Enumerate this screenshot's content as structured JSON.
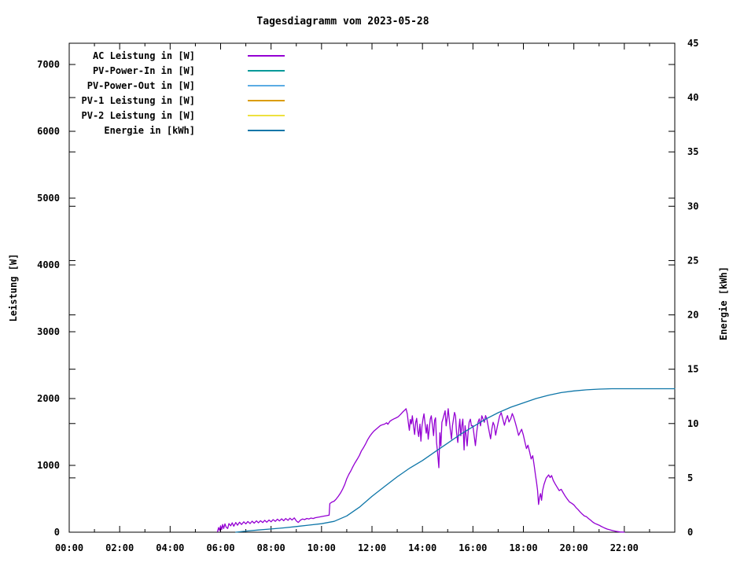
{
  "page": {
    "background": "#ffffff"
  },
  "chart_data": {
    "type": "line",
    "title": "Tagesdiagramm vom 2023-05-28",
    "grid": false,
    "legend_position": "top-left-inside",
    "axes": {
      "x": {
        "unit": "time",
        "range_hours": [
          0,
          24
        ],
        "major_step_hours": 2,
        "minor_step_hours": 1,
        "tick_labels": [
          "00:00",
          "02:00",
          "04:00",
          "06:00",
          "08:00",
          "10:00",
          "12:00",
          "14:00",
          "16:00",
          "18:00",
          "20:00",
          "22:00"
        ]
      },
      "y_left": {
        "label": "Leistung [W]",
        "range": [
          0,
          7318
        ],
        "tick_step": 1000,
        "tick_values": [
          0,
          1000,
          2000,
          3000,
          4000,
          5000,
          6000,
          7000
        ],
        "tick_labels": [
          "0",
          "1000",
          "2000",
          "3000",
          "4000",
          "5000",
          "6000",
          "7000"
        ]
      },
      "y_right": {
        "label": "Energie [kWh]",
        "range": [
          0,
          45
        ],
        "tick_step": 5,
        "tick_values": [
          0,
          5,
          10,
          15,
          20,
          25,
          30,
          35,
          40,
          45
        ],
        "tick_labels": [
          "0",
          "5",
          "10",
          "15",
          "20",
          "25",
          "30",
          "35",
          "40",
          "45"
        ]
      }
    },
    "series": [
      {
        "name": "AC Leistung in [W]",
        "color": "#9400D3",
        "axis": "left",
        "points": [
          [
            5.88,
            10
          ],
          [
            5.92,
            70
          ],
          [
            5.96,
            25
          ],
          [
            6.0,
            95
          ],
          [
            6.04,
            40
          ],
          [
            6.08,
            115
          ],
          [
            6.12,
            55
          ],
          [
            6.17,
            125
          ],
          [
            6.22,
            75
          ],
          [
            6.28,
            55
          ],
          [
            6.33,
            130
          ],
          [
            6.4,
            95
          ],
          [
            6.46,
            140
          ],
          [
            6.52,
            90
          ],
          [
            6.6,
            145
          ],
          [
            6.67,
            105
          ],
          [
            6.75,
            150
          ],
          [
            6.83,
            115
          ],
          [
            6.92,
            155
          ],
          [
            7.0,
            125
          ],
          [
            7.08,
            160
          ],
          [
            7.17,
            130
          ],
          [
            7.25,
            165
          ],
          [
            7.33,
            135
          ],
          [
            7.42,
            170
          ],
          [
            7.5,
            140
          ],
          [
            7.58,
            172
          ],
          [
            7.67,
            145
          ],
          [
            7.75,
            178
          ],
          [
            7.83,
            150
          ],
          [
            7.92,
            182
          ],
          [
            8.0,
            155
          ],
          [
            8.08,
            188
          ],
          [
            8.17,
            162
          ],
          [
            8.25,
            195
          ],
          [
            8.33,
            168
          ],
          [
            8.42,
            200
          ],
          [
            8.5,
            172
          ],
          [
            8.58,
            205
          ],
          [
            8.67,
            178
          ],
          [
            8.75,
            210
          ],
          [
            8.83,
            182
          ],
          [
            8.92,
            214
          ],
          [
            9.0,
            170
          ],
          [
            9.08,
            146
          ],
          [
            9.17,
            182
          ],
          [
            9.25,
            198
          ],
          [
            9.33,
            188
          ],
          [
            9.42,
            206
          ],
          [
            9.5,
            198
          ],
          [
            9.58,
            212
          ],
          [
            9.67,
            205
          ],
          [
            9.75,
            216
          ],
          [
            9.83,
            222
          ],
          [
            9.92,
            228
          ],
          [
            10.0,
            234
          ],
          [
            10.08,
            240
          ],
          [
            10.17,
            246
          ],
          [
            10.25,
            252
          ],
          [
            10.3,
            255
          ],
          [
            10.33,
            430
          ],
          [
            10.42,
            452
          ],
          [
            10.5,
            465
          ],
          [
            10.58,
            495
          ],
          [
            10.67,
            540
          ],
          [
            10.75,
            585
          ],
          [
            10.83,
            640
          ],
          [
            10.92,
            715
          ],
          [
            11.0,
            800
          ],
          [
            11.08,
            865
          ],
          [
            11.17,
            925
          ],
          [
            11.25,
            985
          ],
          [
            11.33,
            1040
          ],
          [
            11.42,
            1095
          ],
          [
            11.5,
            1150
          ],
          [
            11.58,
            1215
          ],
          [
            11.67,
            1270
          ],
          [
            11.75,
            1325
          ],
          [
            11.83,
            1385
          ],
          [
            11.92,
            1440
          ],
          [
            12.0,
            1480
          ],
          [
            12.08,
            1515
          ],
          [
            12.17,
            1545
          ],
          [
            12.25,
            1570
          ],
          [
            12.33,
            1595
          ],
          [
            12.42,
            1610
          ],
          [
            12.5,
            1618
          ],
          [
            12.58,
            1638
          ],
          [
            12.63,
            1615
          ],
          [
            12.71,
            1660
          ],
          [
            12.79,
            1680
          ],
          [
            12.88,
            1698
          ],
          [
            12.96,
            1712
          ],
          [
            13.04,
            1728
          ],
          [
            13.13,
            1762
          ],
          [
            13.21,
            1795
          ],
          [
            13.29,
            1825
          ],
          [
            13.35,
            1848
          ],
          [
            13.4,
            1768
          ],
          [
            13.44,
            1640
          ],
          [
            13.48,
            1525
          ],
          [
            13.52,
            1688
          ],
          [
            13.56,
            1620
          ],
          [
            13.6,
            1742
          ],
          [
            13.65,
            1580
          ],
          [
            13.69,
            1462
          ],
          [
            13.73,
            1640
          ],
          [
            13.77,
            1705
          ],
          [
            13.81,
            1525
          ],
          [
            13.85,
            1432
          ],
          [
            13.9,
            1618
          ],
          [
            13.94,
            1362
          ],
          [
            13.98,
            1580
          ],
          [
            14.02,
            1692
          ],
          [
            14.06,
            1772
          ],
          [
            14.1,
            1635
          ],
          [
            14.15,
            1482
          ],
          [
            14.19,
            1612
          ],
          [
            14.23,
            1392
          ],
          [
            14.27,
            1545
          ],
          [
            14.31,
            1692
          ],
          [
            14.35,
            1742
          ],
          [
            14.4,
            1585
          ],
          [
            14.44,
            1445
          ],
          [
            14.48,
            1672
          ],
          [
            14.52,
            1712
          ],
          [
            14.56,
            1342
          ],
          [
            14.6,
            1192
          ],
          [
            14.65,
            965
          ],
          [
            14.69,
            1488
          ],
          [
            14.73,
            1292
          ],
          [
            14.77,
            1645
          ],
          [
            14.81,
            1695
          ],
          [
            14.85,
            1748
          ],
          [
            14.9,
            1818
          ],
          [
            14.94,
            1592
          ],
          [
            14.98,
            1712
          ],
          [
            15.02,
            1848
          ],
          [
            15.06,
            1692
          ],
          [
            15.1,
            1542
          ],
          [
            15.15,
            1392
          ],
          [
            15.19,
            1592
          ],
          [
            15.23,
            1692
          ],
          [
            15.27,
            1792
          ],
          [
            15.31,
            1742
          ],
          [
            15.35,
            1492
          ],
          [
            15.4,
            1342
          ],
          [
            15.44,
            1542
          ],
          [
            15.48,
            1692
          ],
          [
            15.52,
            1442
          ],
          [
            15.56,
            1592
          ],
          [
            15.6,
            1692
          ],
          [
            15.65,
            1232
          ],
          [
            15.69,
            1592
          ],
          [
            15.73,
            1442
          ],
          [
            15.77,
            1292
          ],
          [
            15.81,
            1492
          ],
          [
            15.85,
            1642
          ],
          [
            15.9,
            1692
          ],
          [
            15.94,
            1592
          ],
          [
            16.0,
            1592
          ],
          [
            16.05,
            1445
          ],
          [
            16.1,
            1295
          ],
          [
            16.15,
            1492
          ],
          [
            16.2,
            1642
          ],
          [
            16.25,
            1695
          ],
          [
            16.3,
            1592
          ],
          [
            16.35,
            1742
          ],
          [
            16.4,
            1695
          ],
          [
            16.45,
            1645
          ],
          [
            16.5,
            1745
          ],
          [
            16.55,
            1695
          ],
          [
            16.6,
            1595
          ],
          [
            16.65,
            1495
          ],
          [
            16.7,
            1398
          ],
          [
            16.75,
            1545
          ],
          [
            16.8,
            1645
          ],
          [
            16.85,
            1595
          ],
          [
            16.9,
            1452
          ],
          [
            16.95,
            1548
          ],
          [
            17.0,
            1640
          ],
          [
            17.06,
            1740
          ],
          [
            17.12,
            1790
          ],
          [
            17.18,
            1700
          ],
          [
            17.25,
            1600
          ],
          [
            17.31,
            1690
          ],
          [
            17.37,
            1745
          ],
          [
            17.43,
            1650
          ],
          [
            17.5,
            1700
          ],
          [
            17.56,
            1775
          ],
          [
            17.62,
            1718
          ],
          [
            17.68,
            1640
          ],
          [
            17.75,
            1540
          ],
          [
            17.81,
            1448
          ],
          [
            17.87,
            1495
          ],
          [
            17.93,
            1540
          ],
          [
            18.0,
            1452
          ],
          [
            18.06,
            1352
          ],
          [
            18.12,
            1252
          ],
          [
            18.18,
            1302
          ],
          [
            18.25,
            1198
          ],
          [
            18.31,
            1095
          ],
          [
            18.37,
            1145
          ],
          [
            18.43,
            992
          ],
          [
            18.48,
            852
          ],
          [
            18.52,
            748
          ],
          [
            18.56,
            628
          ],
          [
            18.6,
            415
          ],
          [
            18.64,
            518
          ],
          [
            18.68,
            578
          ],
          [
            18.72,
            478
          ],
          [
            18.76,
            622
          ],
          [
            18.82,
            718
          ],
          [
            18.9,
            808
          ],
          [
            19.0,
            858
          ],
          [
            19.06,
            818
          ],
          [
            19.12,
            848
          ],
          [
            19.18,
            778
          ],
          [
            19.25,
            728
          ],
          [
            19.33,
            678
          ],
          [
            19.42,
            622
          ],
          [
            19.5,
            642
          ],
          [
            19.58,
            588
          ],
          [
            19.67,
            532
          ],
          [
            19.75,
            492
          ],
          [
            19.83,
            452
          ],
          [
            19.92,
            432
          ],
          [
            20.0,
            408
          ],
          [
            20.08,
            372
          ],
          [
            20.17,
            338
          ],
          [
            20.25,
            302
          ],
          [
            20.33,
            272
          ],
          [
            20.42,
            242
          ],
          [
            20.5,
            232
          ],
          [
            20.58,
            205
          ],
          [
            20.67,
            178
          ],
          [
            20.75,
            152
          ],
          [
            20.83,
            132
          ],
          [
            20.92,
            118
          ],
          [
            21.0,
            105
          ],
          [
            21.08,
            88
          ],
          [
            21.17,
            72
          ],
          [
            21.25,
            58
          ],
          [
            21.33,
            46
          ],
          [
            21.42,
            36
          ],
          [
            21.5,
            28
          ],
          [
            21.58,
            20
          ],
          [
            21.67,
            13
          ],
          [
            21.75,
            8
          ],
          [
            21.83,
            4
          ],
          [
            21.92,
            2
          ],
          [
            22.0,
            0
          ]
        ]
      },
      {
        "name": "PV-Power-In in [W]",
        "color": "#009999",
        "axis": "left",
        "points": []
      },
      {
        "name": "PV-Power-Out in [W]",
        "color": "#5BACE4",
        "axis": "left",
        "points": []
      },
      {
        "name": "PV-1 Leistung in [W]",
        "color": "#DB9C00",
        "axis": "left",
        "points": []
      },
      {
        "name": "PV-2 Leistung in [W]",
        "color": "#EEE13F",
        "axis": "left",
        "points": []
      },
      {
        "name": "Energie in [kWh]",
        "color": "#0E76A8",
        "axis": "right",
        "points": [
          [
            6.6,
            0
          ],
          [
            7.0,
            0.1
          ],
          [
            7.5,
            0.2
          ],
          [
            8.0,
            0.3
          ],
          [
            8.5,
            0.4
          ],
          [
            9.0,
            0.52
          ],
          [
            9.5,
            0.65
          ],
          [
            10.0,
            0.78
          ],
          [
            10.5,
            1.0
          ],
          [
            11.0,
            1.5
          ],
          [
            11.5,
            2.3
          ],
          [
            12.0,
            3.3
          ],
          [
            12.5,
            4.2
          ],
          [
            13.0,
            5.1
          ],
          [
            13.5,
            5.9
          ],
          [
            14.0,
            6.6
          ],
          [
            14.5,
            7.4
          ],
          [
            15.0,
            8.2
          ],
          [
            15.5,
            9.0
          ],
          [
            16.0,
            9.7
          ],
          [
            16.5,
            10.4
          ],
          [
            17.0,
            11.0
          ],
          [
            17.5,
            11.5
          ],
          [
            18.0,
            11.9
          ],
          [
            18.5,
            12.3
          ],
          [
            19.0,
            12.6
          ],
          [
            19.5,
            12.85
          ],
          [
            20.0,
            13.0
          ],
          [
            20.5,
            13.1
          ],
          [
            21.0,
            13.17
          ],
          [
            21.5,
            13.2
          ],
          [
            22.0,
            13.2
          ],
          [
            23.0,
            13.2
          ],
          [
            24.0,
            13.2
          ]
        ]
      }
    ]
  }
}
